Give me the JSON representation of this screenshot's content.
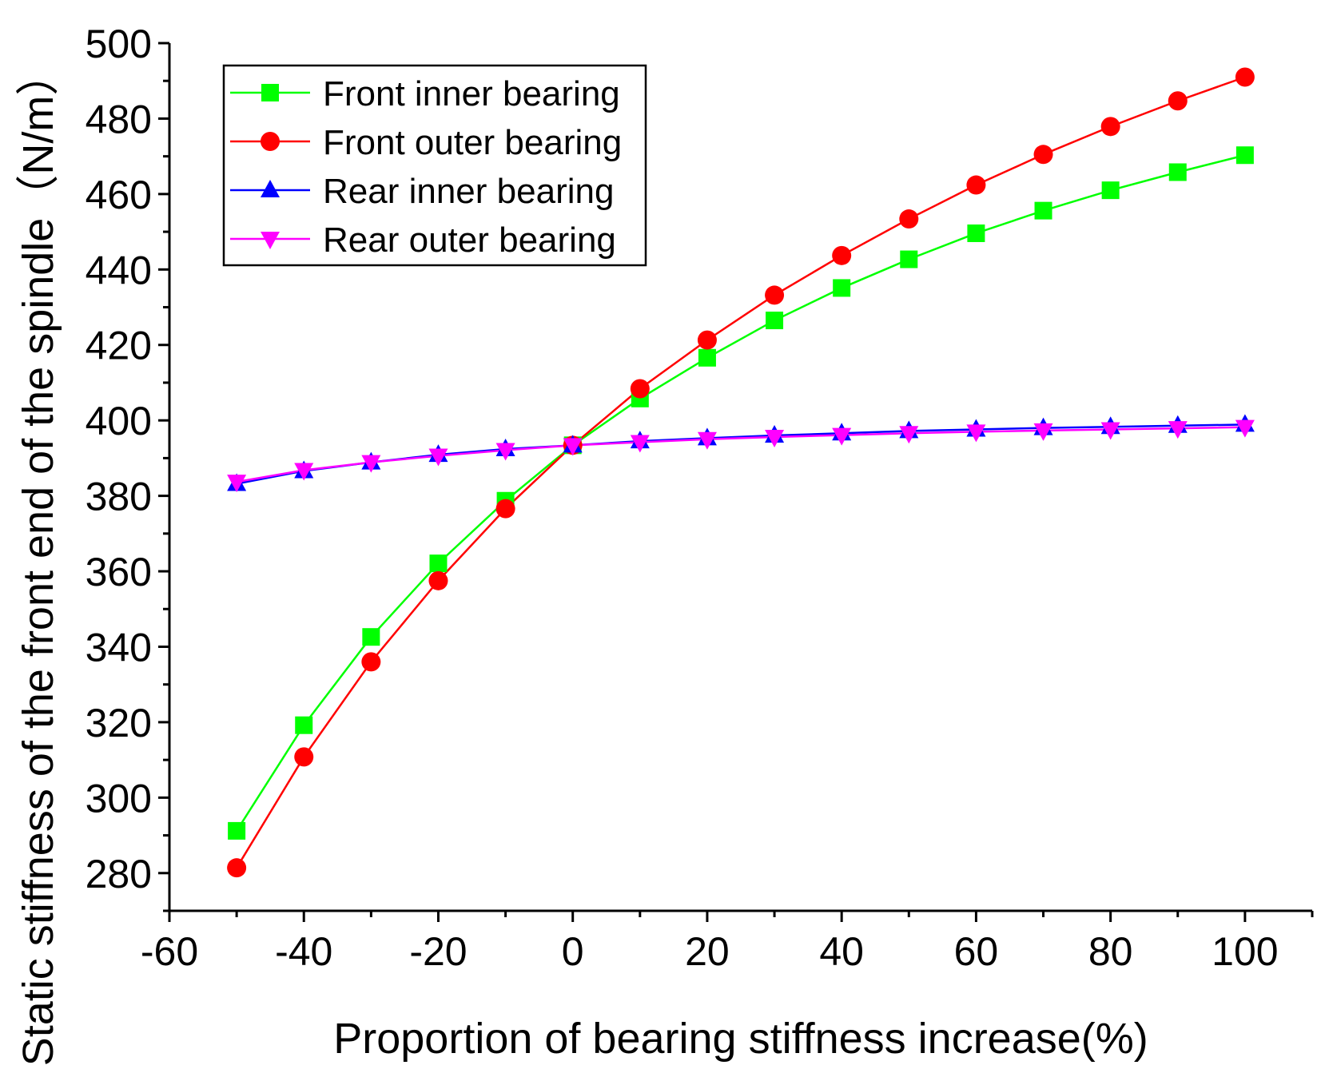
{
  "chart_data": {
    "type": "line",
    "title": "",
    "xlabel": "Proportion of bearing stiffness increase(%)",
    "ylabel": "Static stiffness of the front end of the spindle（N/m）",
    "xlim": [
      -60,
      110
    ],
    "ylim": [
      270,
      500
    ],
    "x_ticks": [
      -60,
      -40,
      -20,
      0,
      20,
      40,
      60,
      80,
      100
    ],
    "x_tick_labels": [
      "-60",
      "-40",
      "-20",
      "0",
      "20",
      "40",
      "60",
      "80",
      "100"
    ],
    "y_ticks": [
      280,
      300,
      320,
      340,
      360,
      380,
      400,
      420,
      440,
      460,
      480,
      500
    ],
    "y_tick_labels": [
      "280",
      "300",
      "320",
      "340",
      "360",
      "380",
      "400",
      "420",
      "440",
      "460",
      "480",
      "500"
    ],
    "grid": false,
    "legend_position": "top-left",
    "x": [
      -50,
      -40,
      -30,
      -20,
      -10,
      0,
      10,
      20,
      30,
      40,
      50,
      60,
      70,
      80,
      90,
      100
    ],
    "series": [
      {
        "name": "Front inner bearing",
        "color": "#00ff00",
        "marker": "square",
        "values": [
          291.2,
          319.2,
          342.6,
          362.1,
          378.7,
          393.4,
          405.8,
          416.6,
          426.5,
          435.1,
          442.7,
          449.6,
          455.6,
          461.0,
          465.8,
          470.3
        ]
      },
      {
        "name": "Front outer bearing",
        "color": "#ff0000",
        "marker": "circle",
        "values": [
          281.4,
          310.8,
          336.0,
          357.5,
          376.6,
          393.4,
          408.4,
          421.3,
          433.2,
          443.7,
          453.4,
          462.4,
          470.5,
          477.9,
          484.7,
          491.0
        ]
      },
      {
        "name": "Rear inner bearing",
        "color": "#0000ff",
        "marker": "triangle-up",
        "values": [
          383.2,
          386.6,
          388.9,
          390.9,
          392.4,
          393.4,
          394.5,
          395.3,
          396.0,
          396.6,
          397.2,
          397.6,
          398.0,
          398.3,
          398.6,
          398.9
        ]
      },
      {
        "name": "Rear outer bearing",
        "color": "#ff00ff",
        "marker": "triangle-down",
        "values": [
          383.7,
          386.8,
          388.9,
          390.6,
          392.1,
          393.4,
          394.2,
          395.0,
          395.6,
          396.1,
          396.6,
          397.0,
          397.3,
          397.6,
          397.9,
          398.2
        ]
      }
    ]
  }
}
